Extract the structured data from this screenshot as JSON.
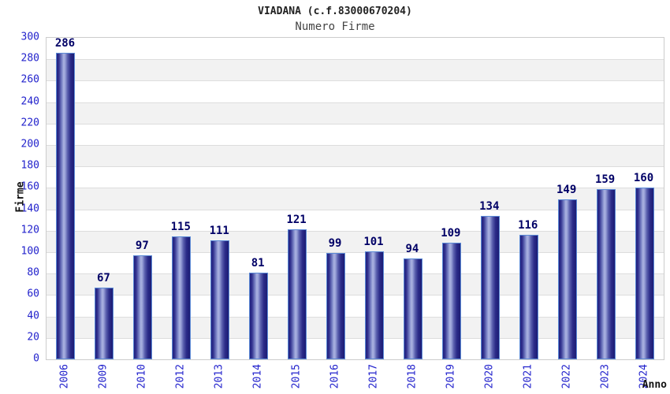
{
  "chart_data": {
    "type": "bar",
    "title": "VIADANA (c.f.83000670204)",
    "subtitle": "Numero Firme",
    "xlabel": "Anno",
    "ylabel": "Firme",
    "categories": [
      "2006",
      "2009",
      "2010",
      "2012",
      "2013",
      "2014",
      "2015",
      "2016",
      "2017",
      "2018",
      "2019",
      "2020",
      "2021",
      "2022",
      "2023",
      "2024"
    ],
    "values": [
      286,
      67,
      97,
      115,
      111,
      81,
      121,
      99,
      101,
      94,
      109,
      134,
      116,
      149,
      159,
      160
    ],
    "ylim": [
      0,
      300
    ],
    "ytick_step": 20,
    "grid": true,
    "legend": "none",
    "colors": {
      "bar_dark": "#1c1c74",
      "bar_light": "#aab2e0",
      "bar_border": "#5b8ad6",
      "tick_label": "#2222cc",
      "value_label": "#000066",
      "band_gray": "#f2f2f2",
      "band_white": "#ffffff",
      "gridline": "#dddddd",
      "plot_border": "#cccccc",
      "title_color": "#222222",
      "subtitle_color": "#444444"
    }
  }
}
